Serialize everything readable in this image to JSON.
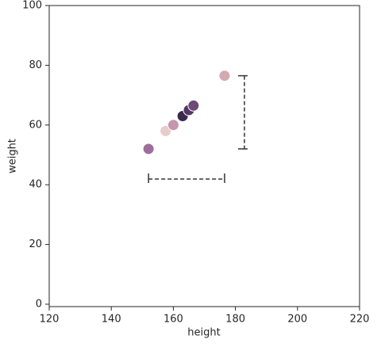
{
  "chart_data": {
    "type": "scatter",
    "xlabel": "height",
    "ylabel": "weight",
    "x": [
      152,
      157.5,
      160,
      163,
      165,
      166.5,
      176.5
    ],
    "values": [
      52,
      58,
      60,
      63,
      65,
      66.5,
      76.5
    ],
    "colors": [
      "#9c6e9a",
      "#e8cbcb",
      "#c596ad",
      "#3b2a4e",
      "#553763",
      "#6e4a7a",
      "#d3a9b2"
    ],
    "xlim": [
      120,
      220
    ],
    "xticks": [
      120,
      140,
      160,
      180,
      200,
      220
    ],
    "ylim": [
      -0.8,
      100
    ],
    "yticks": [
      0,
      20,
      40,
      60,
      80,
      100
    ]
  }
}
